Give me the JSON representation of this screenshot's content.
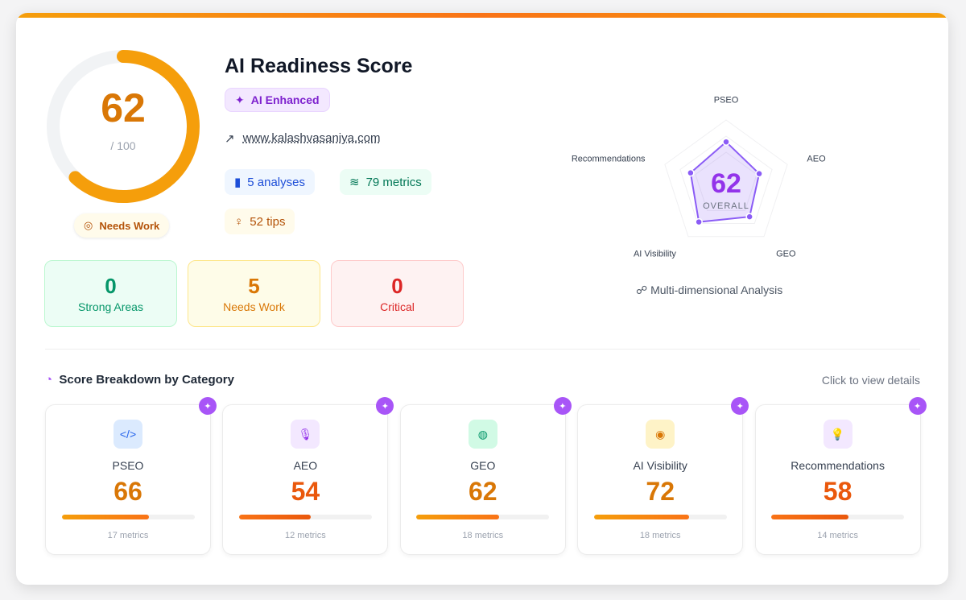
{
  "score": {
    "value": 62,
    "scale": {
      "value": 100,
      "label": "/ 100"
    },
    "status": "Needs Work"
  },
  "header": {
    "title": "AI Readiness Score",
    "badge": "AI Enhanced",
    "url": "www.kalashvasaniya.com"
  },
  "stats": [
    "5 analyses",
    "79 metrics",
    "52 tips"
  ],
  "summary": [
    {
      "value": 0,
      "label": "Strong Areas"
    },
    {
      "value": 5,
      "label": "Needs Work"
    },
    {
      "value": 0,
      "label": "Critical"
    }
  ],
  "radar": {
    "overall": 62,
    "overall_label": "OVERALL",
    "caption": "Multi-dimensional Analysis"
  },
  "breakdown": {
    "title": "Score Breakdown by Category",
    "hint": "Click to view details",
    "categories": [
      {
        "name": "PSEO",
        "score": 66,
        "metrics": "17 metrics",
        "color": "#d97706"
      },
      {
        "name": "AEO",
        "score": 54,
        "metrics": "12 metrics",
        "color": "#ea580c"
      },
      {
        "name": "GEO",
        "score": 62,
        "metrics": "18 metrics",
        "color": "#d97706"
      },
      {
        "name": "AI Visibility",
        "score": 72,
        "metrics": "18 metrics",
        "color": "#d97706"
      },
      {
        "name": "Recommendations",
        "score": 58,
        "metrics": "14 metrics",
        "color": "#ea580c"
      }
    ]
  }
}
